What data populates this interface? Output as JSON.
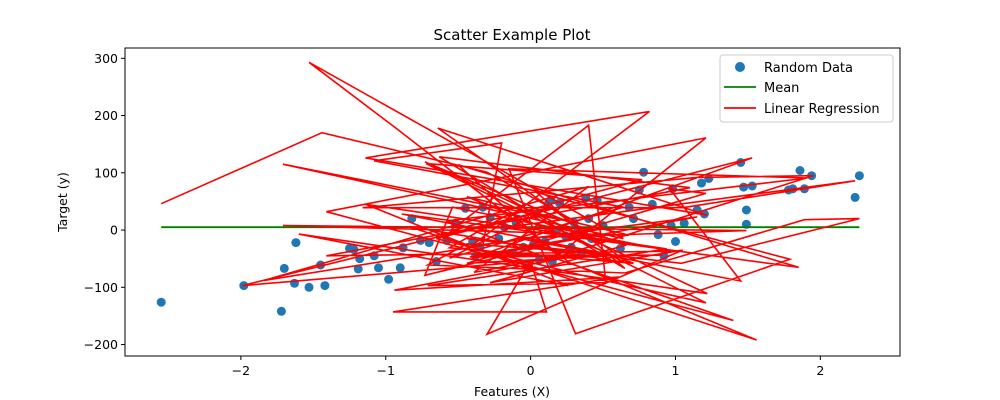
{
  "chart_data": {
    "type": "scatter",
    "title": "Scatter Example Plot",
    "xlabel": "Features (X)",
    "ylabel": "Target (y)",
    "xlim": [
      -2.8,
      2.55
    ],
    "ylim": [
      -220,
      318
    ],
    "xticks": [
      -2,
      -1,
      0,
      1,
      2
    ],
    "xtick_labels": [
      "−2",
      "−1",
      "0",
      "1",
      "2"
    ],
    "yticks": [
      -200,
      -100,
      0,
      100,
      200,
      300
    ],
    "ytick_labels": [
      "−200",
      "−100",
      "0",
      "100",
      "200",
      "300"
    ],
    "grid": false,
    "legend_position": "top-right",
    "legend": [
      "Random Data",
      "Mean",
      "Linear Regression"
    ],
    "colors": {
      "scatter": "#1f77b4",
      "mean": "#008000",
      "regression": "#ff0000"
    },
    "series": [
      {
        "name": "Random Data",
        "kind": "scatter",
        "points": [
          [
            -2.55,
            -126
          ],
          [
            -1.98,
            -97
          ],
          [
            -1.72,
            -142
          ],
          [
            -1.7,
            -67
          ],
          [
            -1.63,
            -93
          ],
          [
            -1.62,
            -22
          ],
          [
            -1.53,
            -100
          ],
          [
            -1.45,
            -61
          ],
          [
            -1.42,
            -97
          ],
          [
            -1.25,
            -32
          ],
          [
            -1.22,
            -34
          ],
          [
            -1.19,
            -68
          ],
          [
            -1.18,
            -50
          ],
          [
            -1.08,
            -45
          ],
          [
            -1.05,
            -66
          ],
          [
            -0.98,
            -86
          ],
          [
            -0.9,
            -66
          ],
          [
            -0.88,
            -31
          ],
          [
            -0.82,
            20
          ],
          [
            -0.76,
            -18
          ],
          [
            -0.7,
            -22
          ],
          [
            -0.65,
            -55
          ],
          [
            -0.58,
            -18
          ],
          [
            -0.52,
            12
          ],
          [
            -0.45,
            38
          ],
          [
            -0.4,
            -20
          ],
          [
            -0.38,
            -45
          ],
          [
            -0.35,
            -30
          ],
          [
            -0.33,
            40
          ],
          [
            -0.28,
            22
          ],
          [
            -0.22,
            -15
          ],
          [
            -0.18,
            5
          ],
          [
            -0.12,
            -40
          ],
          [
            -0.1,
            13
          ],
          [
            -0.05,
            -30
          ],
          [
            -0.02,
            -65
          ],
          [
            0.02,
            -25
          ],
          [
            0.04,
            28
          ],
          [
            0.06,
            -52
          ],
          [
            0.1,
            -20
          ],
          [
            0.12,
            45
          ],
          [
            0.14,
            52
          ],
          [
            0.15,
            -55
          ],
          [
            0.18,
            0
          ],
          [
            0.2,
            47
          ],
          [
            0.24,
            -10
          ],
          [
            0.28,
            -30
          ],
          [
            0.3,
            13
          ],
          [
            0.32,
            -5
          ],
          [
            0.35,
            -42
          ],
          [
            0.38,
            56
          ],
          [
            0.4,
            20
          ],
          [
            0.42,
            -15
          ],
          [
            0.46,
            52
          ],
          [
            0.5,
            8
          ],
          [
            0.62,
            -32
          ],
          [
            0.68,
            40
          ],
          [
            0.71,
            20
          ],
          [
            0.75,
            70
          ],
          [
            0.78,
            101
          ],
          [
            0.84,
            45
          ],
          [
            0.88,
            -8
          ],
          [
            0.92,
            -45
          ],
          [
            0.97,
            8
          ],
          [
            0.98,
            72
          ],
          [
            1.0,
            -20
          ],
          [
            1.06,
            12
          ],
          [
            1.15,
            35
          ],
          [
            1.18,
            82
          ],
          [
            1.2,
            28
          ],
          [
            1.23,
            90
          ],
          [
            1.45,
            118
          ],
          [
            1.47,
            75
          ],
          [
            1.49,
            35
          ],
          [
            1.49,
            10
          ],
          [
            1.53,
            77
          ],
          [
            1.78,
            70
          ],
          [
            1.81,
            72
          ],
          [
            1.86,
            104
          ],
          [
            1.89,
            72
          ],
          [
            1.94,
            95
          ],
          [
            2.24,
            57
          ],
          [
            2.27,
            95
          ]
        ]
      },
      {
        "name": "Mean",
        "kind": "line",
        "points": [
          [
            -2.55,
            5
          ],
          [
            2.27,
            5
          ]
        ]
      },
      {
        "name": "Linear Regression",
        "kind": "line",
        "points": [
          [
            -2.55,
            46
          ],
          [
            -1.44,
            170
          ],
          [
            -0.3,
            101
          ],
          [
            0.33,
            12
          ],
          [
            -1.71,
            115
          ],
          [
            0.64,
            -15
          ],
          [
            -1.53,
            293
          ],
          [
            -0.93,
            178
          ],
          [
            0.27,
            -57
          ],
          [
            1.56,
            -192
          ],
          [
            -0.84,
            6
          ],
          [
            0.68,
            -58
          ],
          [
            -0.64,
            178
          ],
          [
            1.22,
            26
          ],
          [
            -1.14,
            126
          ],
          [
            0.82,
            207
          ],
          [
            -0.41,
            -28
          ],
          [
            1.15,
            23
          ],
          [
            -0.4,
            -49
          ],
          [
            1.53,
            126
          ],
          [
            -0.65,
            -15
          ],
          [
            0.42,
            -83
          ],
          [
            1.21,
            -127
          ],
          [
            -0.72,
            116
          ],
          [
            0.77,
            88
          ],
          [
            -0.56,
            -2
          ],
          [
            0.4,
            183
          ],
          [
            0.52,
            -92
          ],
          [
            -0.71,
            -97
          ],
          [
            0.94,
            -33
          ],
          [
            -1.14,
            45
          ],
          [
            0.26,
            -97
          ],
          [
            -1.6,
            -7
          ],
          [
            1.22,
            -111
          ],
          [
            -0.73,
            119
          ],
          [
            0.65,
            -27
          ],
          [
            -0.28,
            -92
          ],
          [
            1.05,
            -35
          ],
          [
            -0.3,
            -182
          ],
          [
            0.0,
            -54
          ],
          [
            0.11,
            -143
          ],
          [
            -0.95,
            -143
          ],
          [
            0.61,
            -82
          ],
          [
            -0.94,
            -105
          ],
          [
            0.19,
            -51
          ],
          [
            1.4,
            -158
          ],
          [
            -1.41,
            32
          ],
          [
            1.21,
            161
          ],
          [
            0.15,
            -52
          ],
          [
            -0.58,
            16
          ],
          [
            1.91,
            91
          ],
          [
            -0.15,
            107
          ],
          [
            0.31,
            -181
          ],
          [
            1.79,
            -51
          ],
          [
            0.04,
            66
          ],
          [
            0.65,
            -67
          ],
          [
            -0.63,
            128
          ],
          [
            1.1,
            74
          ],
          [
            -1.41,
            -45
          ],
          [
            0.97,
            -37
          ],
          [
            -0.54,
            40
          ],
          [
            -0.73,
            -79
          ],
          [
            0.33,
            -13
          ],
          [
            -0.42,
            -47
          ],
          [
            0.91,
            -44
          ],
          [
            -0.39,
            -44
          ],
          [
            0.21,
            -45
          ],
          [
            -0.39,
            -74
          ],
          [
            0.4,
            76
          ],
          [
            -1.84,
            -88
          ],
          [
            -0.33,
            -27
          ],
          [
            -0.2,
            152
          ],
          [
            -1.08,
            121
          ],
          [
            0.64,
            40
          ],
          [
            -0.56,
            -49
          ],
          [
            0.09,
            34
          ],
          [
            -1.99,
            -97
          ],
          [
            0.21,
            -50
          ],
          [
            -0.5,
            114
          ],
          [
            1.85,
            -65
          ],
          [
            -0.89,
            28
          ],
          [
            0.54,
            -42
          ],
          [
            -0.44,
            -24
          ],
          [
            -0.71,
            -61
          ],
          [
            0.65,
            -75
          ],
          [
            1.89,
            18
          ],
          [
            2.27,
            20
          ],
          [
            1.04,
            -58
          ],
          [
            -0.44,
            -15
          ],
          [
            0.54,
            -45
          ],
          [
            -0.44,
            -58
          ],
          [
            1.21,
            64
          ],
          [
            0.96,
            72
          ],
          [
            1.45,
            -89
          ],
          [
            -0.09,
            -14
          ],
          [
            1.49,
            -1
          ],
          [
            -1.71,
            8
          ],
          [
            0.68,
            -9
          ],
          [
            -0.44,
            58
          ],
          [
            0.71,
            -58
          ],
          [
            -0.56,
            -31
          ],
          [
            -0.13,
            31
          ],
          [
            -0.2,
            4
          ],
          [
            2.24,
            86
          ],
          [
            1.05,
            39
          ],
          [
            -1.16,
            39
          ],
          [
            1.15,
            92
          ],
          [
            1.95,
            95
          ],
          [
            0.16,
            -49
          ]
        ]
      }
    ]
  }
}
